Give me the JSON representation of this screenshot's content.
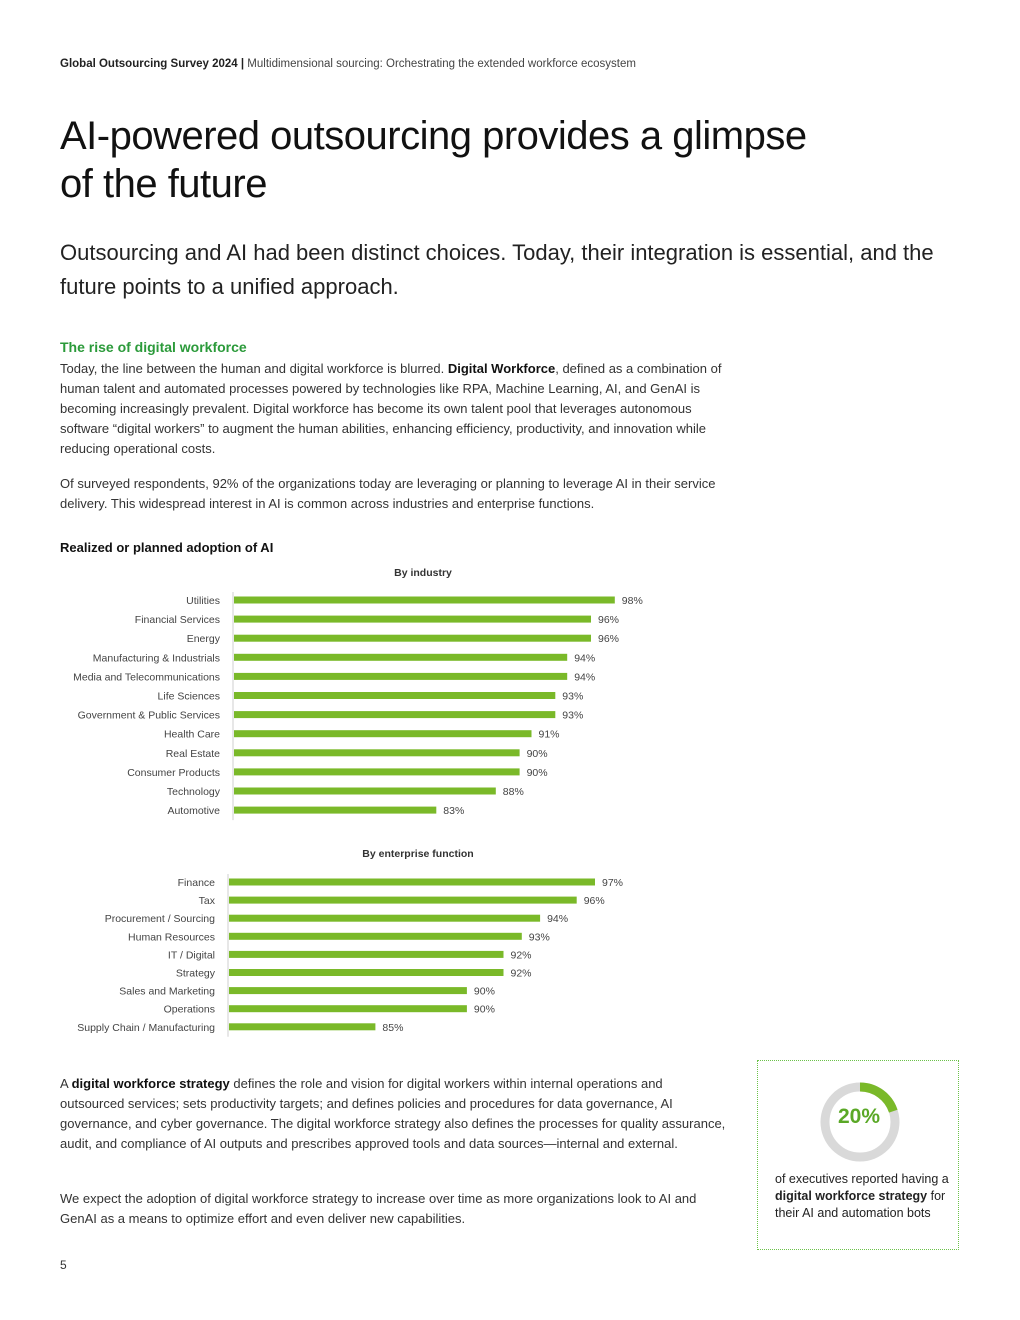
{
  "header": {
    "report": "Global Outsourcing Survey 2024",
    "separator": "|",
    "section": "Multidimensional sourcing: Orchestrating the extended workforce ecosystem"
  },
  "title": "AI-powered outsourcing provides a glimpse of the future",
  "subtitle": "Outsourcing and AI had been distinct choices. Today, their integration is essential, and the future points to a unified approach.",
  "section_heading": "The rise of digital workforce",
  "para1": {
    "before": "Today, the line between the human and digital workforce is blurred. ",
    "bold": "Digital Workforce",
    "after": ", defined as a combination of human talent and automated processes powered by technologies like RPA, Machine Learning, AI, and GenAI is becoming increasingly prevalent. Digital workforce has become its own talent pool that leverages autonomous software “digital workers” to augment the human abilities, enhancing efficiency, productivity, and innovation while reducing operational costs."
  },
  "para2": "Of surveyed respondents, 92% of the organizations today are leveraging or planning to leverage AI in their service delivery. This widespread interest in AI is common across industries and enterprise functions.",
  "chart_heading": "Realized or planned adoption of AI",
  "chart_data": [
    {
      "type": "bar",
      "orientation": "horizontal",
      "title": "By industry",
      "categories": [
        "Utilities",
        "Financial Services",
        "Energy",
        "Manufacturing & Industrials",
        "Media and Telecommunications",
        "Life Sciences",
        "Government & Public Services",
        "Health Care",
        "Real Estate",
        "Consumer Products",
        "Technology",
        "Automotive"
      ],
      "values": [
        98,
        96,
        96,
        94,
        94,
        93,
        93,
        91,
        90,
        90,
        88,
        83
      ],
      "labels": [
        "98%",
        "96%",
        "96%",
        "94%",
        "94%",
        "93%",
        "93%",
        "91%",
        "90%",
        "90%",
        "88%",
        "83%"
      ],
      "color": "#7ab929"
    },
    {
      "type": "bar",
      "orientation": "horizontal",
      "title": "By enterprise function",
      "categories": [
        "Finance",
        "Tax",
        "Procurement / Sourcing",
        "Human Resources",
        "IT / Digital",
        "Strategy",
        "Sales and Marketing",
        "Operations",
        "Supply Chain / Manufacturing"
      ],
      "values": [
        97,
        96,
        94,
        93,
        92,
        92,
        90,
        90,
        85
      ],
      "labels": [
        "97%",
        "96%",
        "94%",
        "93%",
        "92%",
        "92%",
        "90%",
        "90%",
        "85%"
      ],
      "color": "#7ab929"
    }
  ],
  "para3": {
    "before": "A ",
    "bold": "digital workforce strategy",
    "after": " defines the role and vision for digital workers within internal operations and outsourced services; sets productivity targets; and defines policies and procedures for data governance, AI governance, and cyber governance. The digital workforce strategy also defines the processes for quality assurance, audit, and compliance of AI outputs and prescribes approved tools and data sources—internal and external."
  },
  "para4": "We expect the adoption of digital workforce strategy to increase over time as more organizations look to AI and GenAI as a means to optimize effort and even deliver new capabilities.",
  "callout": {
    "value_label": "20%",
    "value": 20,
    "text_before": "of executives reported having a ",
    "text_bold": "digital workforce strategy",
    "text_after": " for their AI and automation bots",
    "accent": "#7ab929",
    "track": "#d9d9d9"
  },
  "page_number": "5"
}
